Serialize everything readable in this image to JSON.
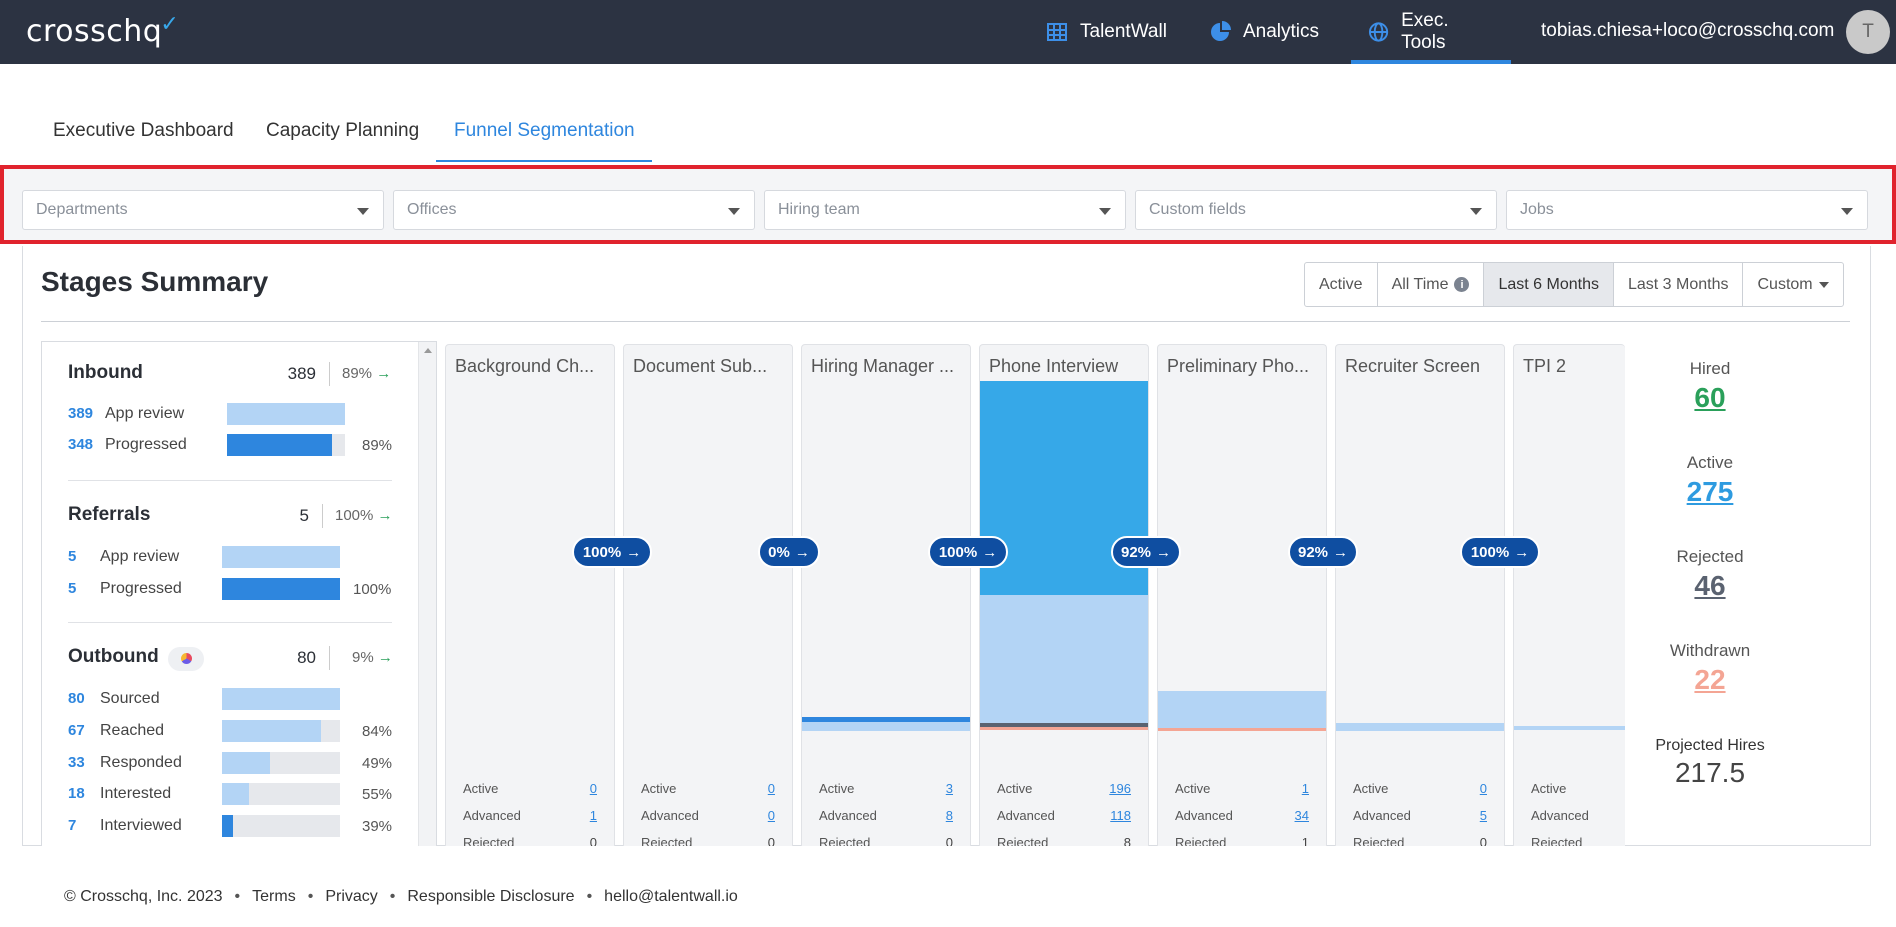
{
  "brand": {
    "name": "crosschq",
    "check": "✓"
  },
  "topnav": {
    "talentwall": "TalentWall",
    "analytics": "Analytics",
    "exec_tools": "Exec. Tools",
    "user_email": "tobias.chiesa+loco@crosschq.com",
    "avatar_initial": "T"
  },
  "subtabs": [
    "Executive Dashboard",
    "Capacity Planning",
    "Funnel Segmentation"
  ],
  "filters": [
    "Departments",
    "Offices",
    "Hiring team",
    "Custom fields",
    "Jobs"
  ],
  "summary": {
    "title": "Stages Summary",
    "ranges": [
      "Active",
      "All Time",
      "Last 6 Months",
      "Last 3 Months",
      "Custom"
    ],
    "selected_range": "Last 6 Months",
    "info_glyph": "i"
  },
  "sources": {
    "inbound": {
      "title": "Inbound",
      "count": "389",
      "pct": "89%",
      "rows": [
        {
          "num": "389",
          "label": "App review",
          "fill": 1.0,
          "pct": ""
        },
        {
          "num": "348",
          "label": "Progressed",
          "fill": 0.89,
          "pct": "89%"
        }
      ]
    },
    "referrals": {
      "title": "Referrals",
      "count": "5",
      "pct": "100%",
      "rows": [
        {
          "num": "5",
          "label": "App review",
          "fill": 1.0,
          "pct": ""
        },
        {
          "num": "5",
          "label": "Progressed",
          "fill": 1.0,
          "pct": "100%"
        }
      ]
    },
    "outbound": {
      "title": "Outbound",
      "count": "80",
      "pct": "9%",
      "rows": [
        {
          "num": "80",
          "label": "Sourced",
          "fill": 1.0,
          "pct": ""
        },
        {
          "num": "67",
          "label": "Reached",
          "fill": 0.84,
          "pct": "84%"
        },
        {
          "num": "33",
          "label": "Responded",
          "fill": 0.41,
          "pct": "49%"
        },
        {
          "num": "18",
          "label": "Interested",
          "fill": 0.23,
          "pct": "55%"
        },
        {
          "num": "7",
          "label": "Interviewed",
          "fill": 0.09,
          "pct": "39%"
        }
      ]
    }
  },
  "stat_labels": {
    "active": "Active",
    "advanced": "Advanced",
    "rejected": "Rejected"
  },
  "stages": [
    {
      "name": "Background Ch...",
      "active": "0",
      "advanced": "1",
      "rejected": "0"
    },
    {
      "name": "Document Sub...",
      "active": "0",
      "advanced": "0",
      "rejected": "0"
    },
    {
      "name": "Hiring Manager ...",
      "active": "3",
      "advanced": "8",
      "rejected": "0"
    },
    {
      "name": "Phone Interview",
      "active": "196",
      "advanced": "118",
      "rejected": "8"
    },
    {
      "name": "Preliminary Pho...",
      "active": "1",
      "advanced": "34",
      "rejected": "1"
    },
    {
      "name": "Recruiter Screen",
      "active": "0",
      "advanced": "5",
      "rejected": "0"
    },
    {
      "name": "TPI 2",
      "active": "",
      "advanced": "",
      "rejected": ""
    }
  ],
  "conversions": [
    "100%",
    "0%",
    "100%",
    "92%",
    "92%",
    "100%"
  ],
  "totals": {
    "hired_label": "Hired",
    "hired": "60",
    "active_label": "Active",
    "active": "275",
    "rejected_label": "Rejected",
    "rejected": "46",
    "withdrawn_label": "Withdrawn",
    "withdrawn": "22",
    "projected_label": "Projected Hires",
    "projected": "217.5"
  },
  "colors": {
    "nav_bg": "#2c3342",
    "accent": "#2e86de",
    "pill": "#0f4ea1",
    "hired": "#2aa05a",
    "active": "#2e9be0",
    "rejected": "#5a6270",
    "withdrawn": "#f4a594"
  },
  "footer": {
    "copyright": "© Crosschq, Inc. 2023",
    "terms": "Terms",
    "privacy": "Privacy",
    "disclosure": "Responsible Disclosure",
    "email": "hello@talentwall.io",
    "sep": "•"
  }
}
